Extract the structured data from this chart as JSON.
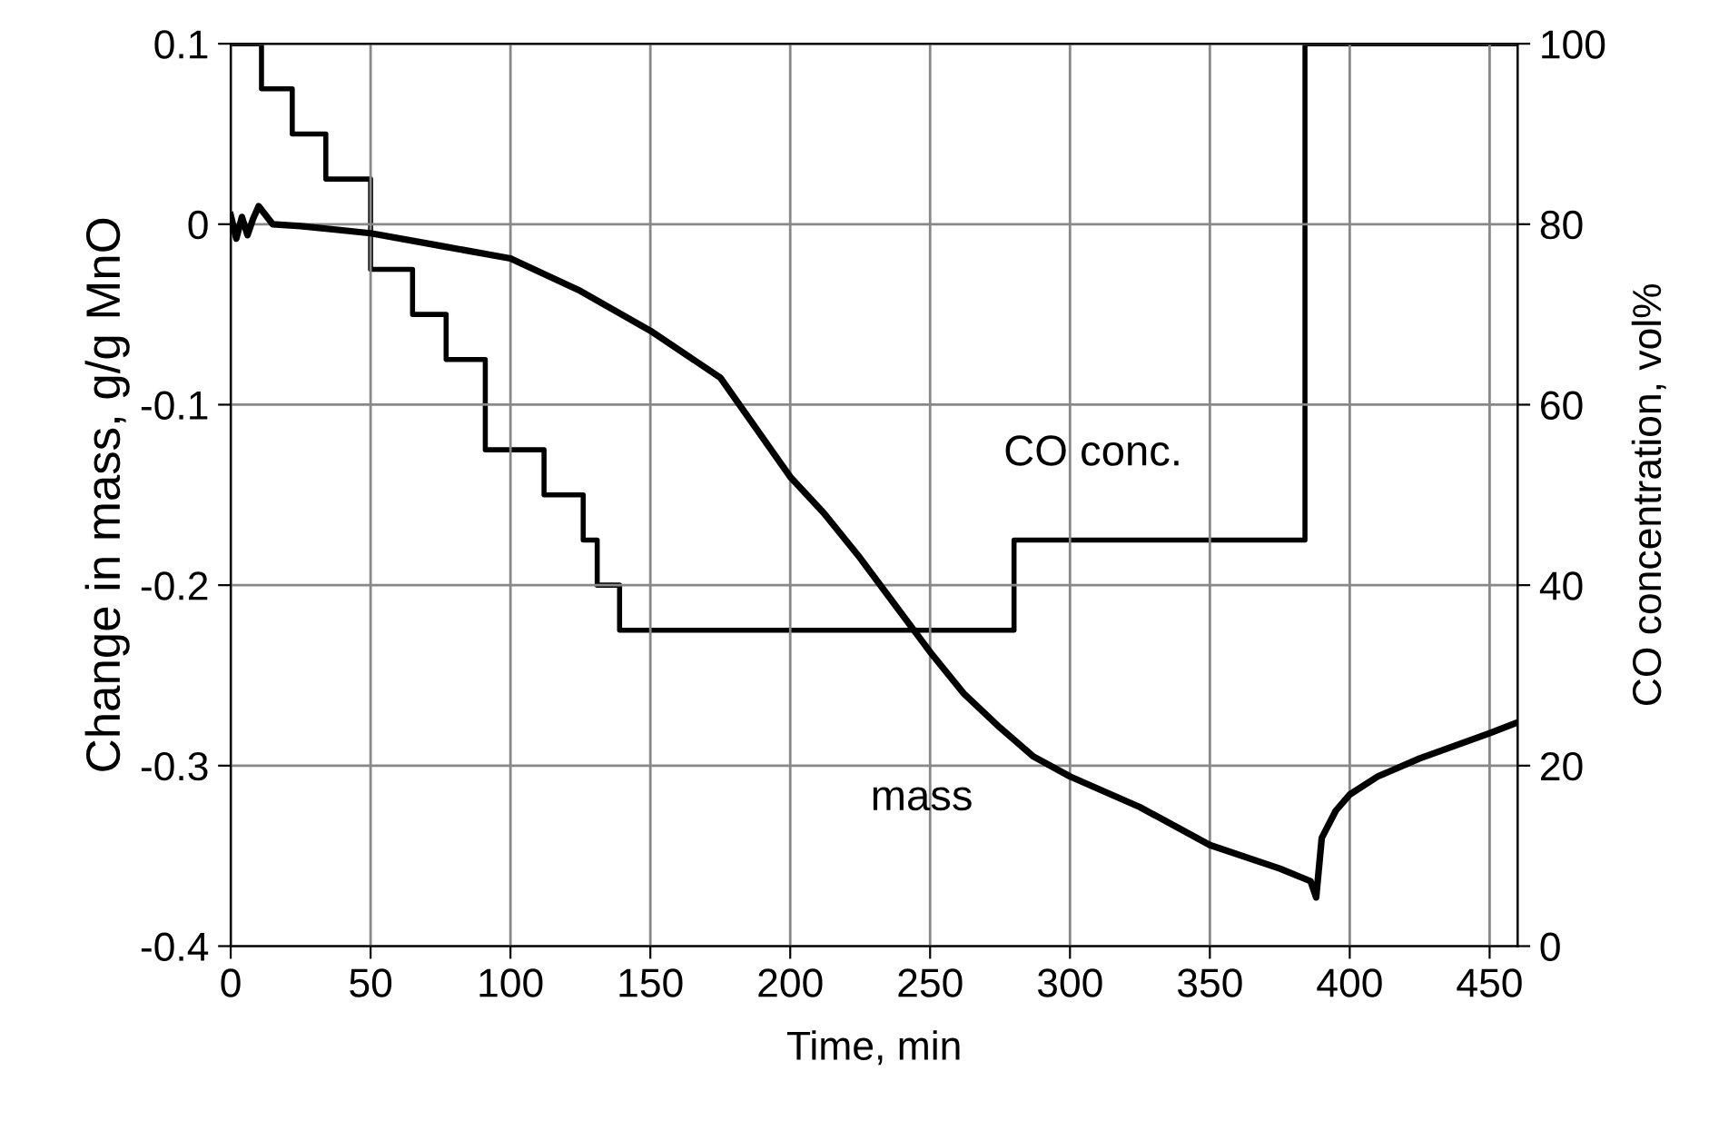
{
  "chart_data": {
    "type": "line",
    "xlabel": "Time, min",
    "ylabel": "Change in mass, g/g MnO",
    "y2label": "CO concentration, vol%",
    "xlim": [
      0,
      460
    ],
    "xticks": [
      0,
      50,
      100,
      150,
      200,
      250,
      300,
      350,
      400,
      450
    ],
    "ylim": [
      -0.4,
      0.1
    ],
    "yticks": [
      -0.4,
      -0.3,
      -0.2,
      -0.1,
      0,
      0.1
    ],
    "y2lim": [
      0,
      100
    ],
    "y2ticks": [
      0,
      20,
      40,
      60,
      80,
      100
    ],
    "grid": true,
    "legend": false,
    "marker": "none",
    "line_style": "solid",
    "series": [
      {
        "name": "mass",
        "color": "#000000",
        "x": [
          0,
          2,
          4,
          6,
          8,
          10,
          15,
          25,
          50,
          75,
          100,
          125,
          150,
          175,
          200,
          212,
          225,
          237,
          250,
          262,
          275,
          287,
          300,
          325,
          350,
          375,
          386,
          388,
          390,
          395,
          400,
          410,
          425,
          450,
          460
        ],
        "values": [
          0.005,
          -0.008,
          0.004,
          -0.006,
          0.003,
          0.01,
          0.0,
          -0.001,
          -0.005,
          -0.012,
          -0.019,
          -0.037,
          -0.059,
          -0.085,
          -0.14,
          -0.16,
          -0.185,
          -0.21,
          -0.237,
          -0.26,
          -0.279,
          -0.295,
          -0.306,
          -0.323,
          -0.344,
          -0.357,
          -0.364,
          -0.373,
          -0.34,
          -0.325,
          -0.316,
          -0.306,
          -0.296,
          -0.282,
          -0.276
        ]
      },
      {
        "name": "CO conc.",
        "type": "step",
        "axis": "y2",
        "color": "#000000",
        "x": [
          0,
          11,
          22,
          34,
          50,
          65,
          77,
          91,
          112,
          126,
          131,
          139,
          280,
          384,
          460
        ],
        "values": [
          100,
          95,
          90,
          85,
          75,
          70,
          65,
          55,
          50,
          45,
          40,
          35,
          45,
          100,
          100
        ]
      }
    ]
  }
}
